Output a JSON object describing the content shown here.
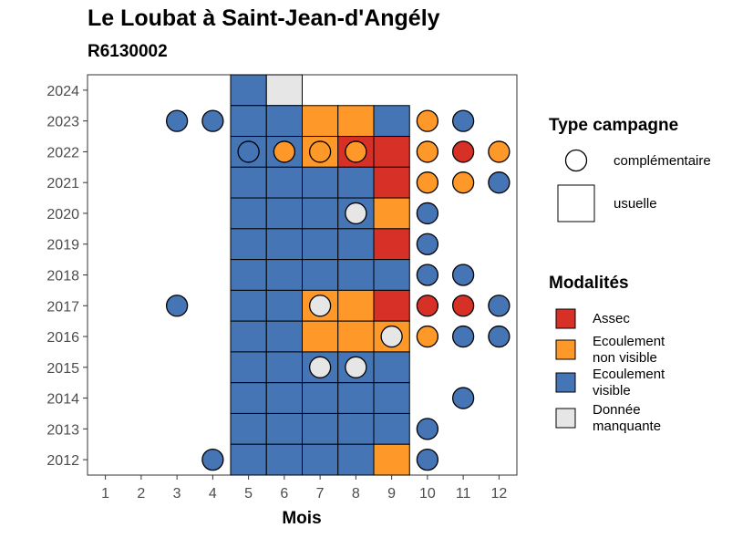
{
  "title": "Le Loubat à Saint-Jean-d'Angély",
  "subtitle": "R6130002",
  "chart_data": {
    "type": "heatmap",
    "xlabel": "Mois",
    "ylabel": "",
    "x_ticks": [
      1,
      2,
      3,
      4,
      5,
      6,
      7,
      8,
      9,
      10,
      11,
      12
    ],
    "y_ticks": [
      2012,
      2013,
      2014,
      2015,
      2016,
      2017,
      2018,
      2019,
      2020,
      2021,
      2022,
      2023,
      2024
    ],
    "xlim": [
      0.5,
      12.5
    ],
    "ylim": [
      2011.5,
      2024.5
    ],
    "colors": {
      "assec": "#d73027",
      "ecoulement_non_visible": "#fe9929",
      "ecoulement_visible": "#4575b4",
      "donnee_manquante": "#e6e6e6"
    },
    "legend_campagne": {
      "title": "Type campagne",
      "entries": [
        {
          "key": "complementaire",
          "label": "complémentaire",
          "shape": "circle"
        },
        {
          "key": "usuelle",
          "label": "usuelle",
          "shape": "square"
        }
      ]
    },
    "legend_modalites": {
      "title": "Modalités",
      "entries": [
        {
          "key": "assec",
          "lines": [
            "Assec"
          ]
        },
        {
          "key": "ecoulement_non_visible",
          "lines": [
            "Ecoulement",
            "non visible"
          ]
        },
        {
          "key": "ecoulement_visible",
          "lines": [
            "Ecoulement",
            "visible"
          ]
        },
        {
          "key": "donnee_manquante",
          "lines": [
            "Donnée",
            "manquante"
          ]
        }
      ]
    },
    "usuelle": [
      {
        "year": 2024,
        "month": 5,
        "m": "ecoulement_visible"
      },
      {
        "year": 2024,
        "month": 6,
        "m": "donnee_manquante"
      },
      {
        "year": 2023,
        "month": 5,
        "m": "ecoulement_visible"
      },
      {
        "year": 2023,
        "month": 6,
        "m": "ecoulement_visible"
      },
      {
        "year": 2023,
        "month": 7,
        "m": "ecoulement_non_visible"
      },
      {
        "year": 2023,
        "month": 8,
        "m": "ecoulement_non_visible"
      },
      {
        "year": 2023,
        "month": 9,
        "m": "ecoulement_visible"
      },
      {
        "year": 2022,
        "month": 5,
        "m": "ecoulement_visible"
      },
      {
        "year": 2022,
        "month": 6,
        "m": "ecoulement_visible"
      },
      {
        "year": 2022,
        "month": 7,
        "m": "ecoulement_non_visible"
      },
      {
        "year": 2022,
        "month": 8,
        "m": "assec"
      },
      {
        "year": 2022,
        "month": 9,
        "m": "assec"
      },
      {
        "year": 2021,
        "month": 5,
        "m": "ecoulement_visible"
      },
      {
        "year": 2021,
        "month": 6,
        "m": "ecoulement_visible"
      },
      {
        "year": 2021,
        "month": 7,
        "m": "ecoulement_visible"
      },
      {
        "year": 2021,
        "month": 8,
        "m": "ecoulement_visible"
      },
      {
        "year": 2021,
        "month": 9,
        "m": "assec"
      },
      {
        "year": 2020,
        "month": 5,
        "m": "ecoulement_visible"
      },
      {
        "year": 2020,
        "month": 6,
        "m": "ecoulement_visible"
      },
      {
        "year": 2020,
        "month": 7,
        "m": "ecoulement_visible"
      },
      {
        "year": 2020,
        "month": 8,
        "m": "ecoulement_visible"
      },
      {
        "year": 2020,
        "month": 9,
        "m": "ecoulement_non_visible"
      },
      {
        "year": 2019,
        "month": 5,
        "m": "ecoulement_visible"
      },
      {
        "year": 2019,
        "month": 6,
        "m": "ecoulement_visible"
      },
      {
        "year": 2019,
        "month": 7,
        "m": "ecoulement_visible"
      },
      {
        "year": 2019,
        "month": 8,
        "m": "ecoulement_visible"
      },
      {
        "year": 2019,
        "month": 9,
        "m": "assec"
      },
      {
        "year": 2018,
        "month": 5,
        "m": "ecoulement_visible"
      },
      {
        "year": 2018,
        "month": 6,
        "m": "ecoulement_visible"
      },
      {
        "year": 2018,
        "month": 7,
        "m": "ecoulement_visible"
      },
      {
        "year": 2018,
        "month": 8,
        "m": "ecoulement_visible"
      },
      {
        "year": 2018,
        "month": 9,
        "m": "ecoulement_visible"
      },
      {
        "year": 2017,
        "month": 5,
        "m": "ecoulement_visible"
      },
      {
        "year": 2017,
        "month": 6,
        "m": "ecoulement_visible"
      },
      {
        "year": 2017,
        "month": 7,
        "m": "ecoulement_non_visible"
      },
      {
        "year": 2017,
        "month": 8,
        "m": "ecoulement_non_visible"
      },
      {
        "year": 2017,
        "month": 9,
        "m": "assec"
      },
      {
        "year": 2016,
        "month": 5,
        "m": "ecoulement_visible"
      },
      {
        "year": 2016,
        "month": 6,
        "m": "ecoulement_visible"
      },
      {
        "year": 2016,
        "month": 7,
        "m": "ecoulement_non_visible"
      },
      {
        "year": 2016,
        "month": 8,
        "m": "ecoulement_non_visible"
      },
      {
        "year": 2016,
        "month": 9,
        "m": "ecoulement_non_visible"
      },
      {
        "year": 2015,
        "month": 5,
        "m": "ecoulement_visible"
      },
      {
        "year": 2015,
        "month": 6,
        "m": "ecoulement_visible"
      },
      {
        "year": 2015,
        "month": 7,
        "m": "ecoulement_visible"
      },
      {
        "year": 2015,
        "month": 8,
        "m": "ecoulement_visible"
      },
      {
        "year": 2015,
        "month": 9,
        "m": "ecoulement_visible"
      },
      {
        "year": 2014,
        "month": 5,
        "m": "ecoulement_visible"
      },
      {
        "year": 2014,
        "month": 6,
        "m": "ecoulement_visible"
      },
      {
        "year": 2014,
        "month": 7,
        "m": "ecoulement_visible"
      },
      {
        "year": 2014,
        "month": 8,
        "m": "ecoulement_visible"
      },
      {
        "year": 2014,
        "month": 9,
        "m": "ecoulement_visible"
      },
      {
        "year": 2013,
        "month": 5,
        "m": "ecoulement_visible"
      },
      {
        "year": 2013,
        "month": 6,
        "m": "ecoulement_visible"
      },
      {
        "year": 2013,
        "month": 7,
        "m": "ecoulement_visible"
      },
      {
        "year": 2013,
        "month": 8,
        "m": "ecoulement_visible"
      },
      {
        "year": 2013,
        "month": 9,
        "m": "ecoulement_visible"
      },
      {
        "year": 2012,
        "month": 5,
        "m": "ecoulement_visible"
      },
      {
        "year": 2012,
        "month": 6,
        "m": "ecoulement_visible"
      },
      {
        "year": 2012,
        "month": 7,
        "m": "ecoulement_visible"
      },
      {
        "year": 2012,
        "month": 8,
        "m": "ecoulement_visible"
      },
      {
        "year": 2012,
        "month": 9,
        "m": "ecoulement_non_visible"
      }
    ],
    "complementaire": [
      {
        "year": 2023,
        "month": 3,
        "m": "ecoulement_visible"
      },
      {
        "year": 2023,
        "month": 4,
        "m": "ecoulement_visible"
      },
      {
        "year": 2023,
        "month": 10,
        "m": "ecoulement_non_visible"
      },
      {
        "year": 2023,
        "month": 11,
        "m": "ecoulement_visible"
      },
      {
        "year": 2022,
        "month": 5,
        "m": "ecoulement_visible"
      },
      {
        "year": 2022,
        "month": 6,
        "m": "ecoulement_non_visible"
      },
      {
        "year": 2022,
        "month": 7,
        "m": "ecoulement_non_visible"
      },
      {
        "year": 2022,
        "month": 8,
        "m": "ecoulement_non_visible"
      },
      {
        "year": 2022,
        "month": 10,
        "m": "ecoulement_non_visible"
      },
      {
        "year": 2022,
        "month": 11,
        "m": "assec"
      },
      {
        "year": 2022,
        "month": 12,
        "m": "ecoulement_non_visible"
      },
      {
        "year": 2021,
        "month": 10,
        "m": "ecoulement_non_visible"
      },
      {
        "year": 2021,
        "month": 11,
        "m": "ecoulement_non_visible"
      },
      {
        "year": 2021,
        "month": 12,
        "m": "ecoulement_visible"
      },
      {
        "year": 2020,
        "month": 8,
        "m": "donnee_manquante"
      },
      {
        "year": 2020,
        "month": 10,
        "m": "ecoulement_visible"
      },
      {
        "year": 2019,
        "month": 10,
        "m": "ecoulement_visible"
      },
      {
        "year": 2018,
        "month": 10,
        "m": "ecoulement_visible"
      },
      {
        "year": 2018,
        "month": 11,
        "m": "ecoulement_visible"
      },
      {
        "year": 2017,
        "month": 3,
        "m": "ecoulement_visible"
      },
      {
        "year": 2017,
        "month": 7,
        "m": "donnee_manquante"
      },
      {
        "year": 2017,
        "month": 10,
        "m": "assec"
      },
      {
        "year": 2017,
        "month": 11,
        "m": "assec"
      },
      {
        "year": 2017,
        "month": 12,
        "m": "ecoulement_visible"
      },
      {
        "year": 2016,
        "month": 9,
        "m": "donnee_manquante"
      },
      {
        "year": 2016,
        "month": 10,
        "m": "ecoulement_non_visible"
      },
      {
        "year": 2016,
        "month": 11,
        "m": "ecoulement_visible"
      },
      {
        "year": 2016,
        "month": 12,
        "m": "ecoulement_visible"
      },
      {
        "year": 2015,
        "month": 7,
        "m": "donnee_manquante"
      },
      {
        "year": 2015,
        "month": 8,
        "m": "donnee_manquante"
      },
      {
        "year": 2014,
        "month": 11,
        "m": "ecoulement_visible"
      },
      {
        "year": 2013,
        "month": 10,
        "m": "ecoulement_visible"
      },
      {
        "year": 2012,
        "month": 4,
        "m": "ecoulement_visible"
      },
      {
        "year": 2012,
        "month": 10,
        "m": "ecoulement_visible"
      }
    ]
  }
}
